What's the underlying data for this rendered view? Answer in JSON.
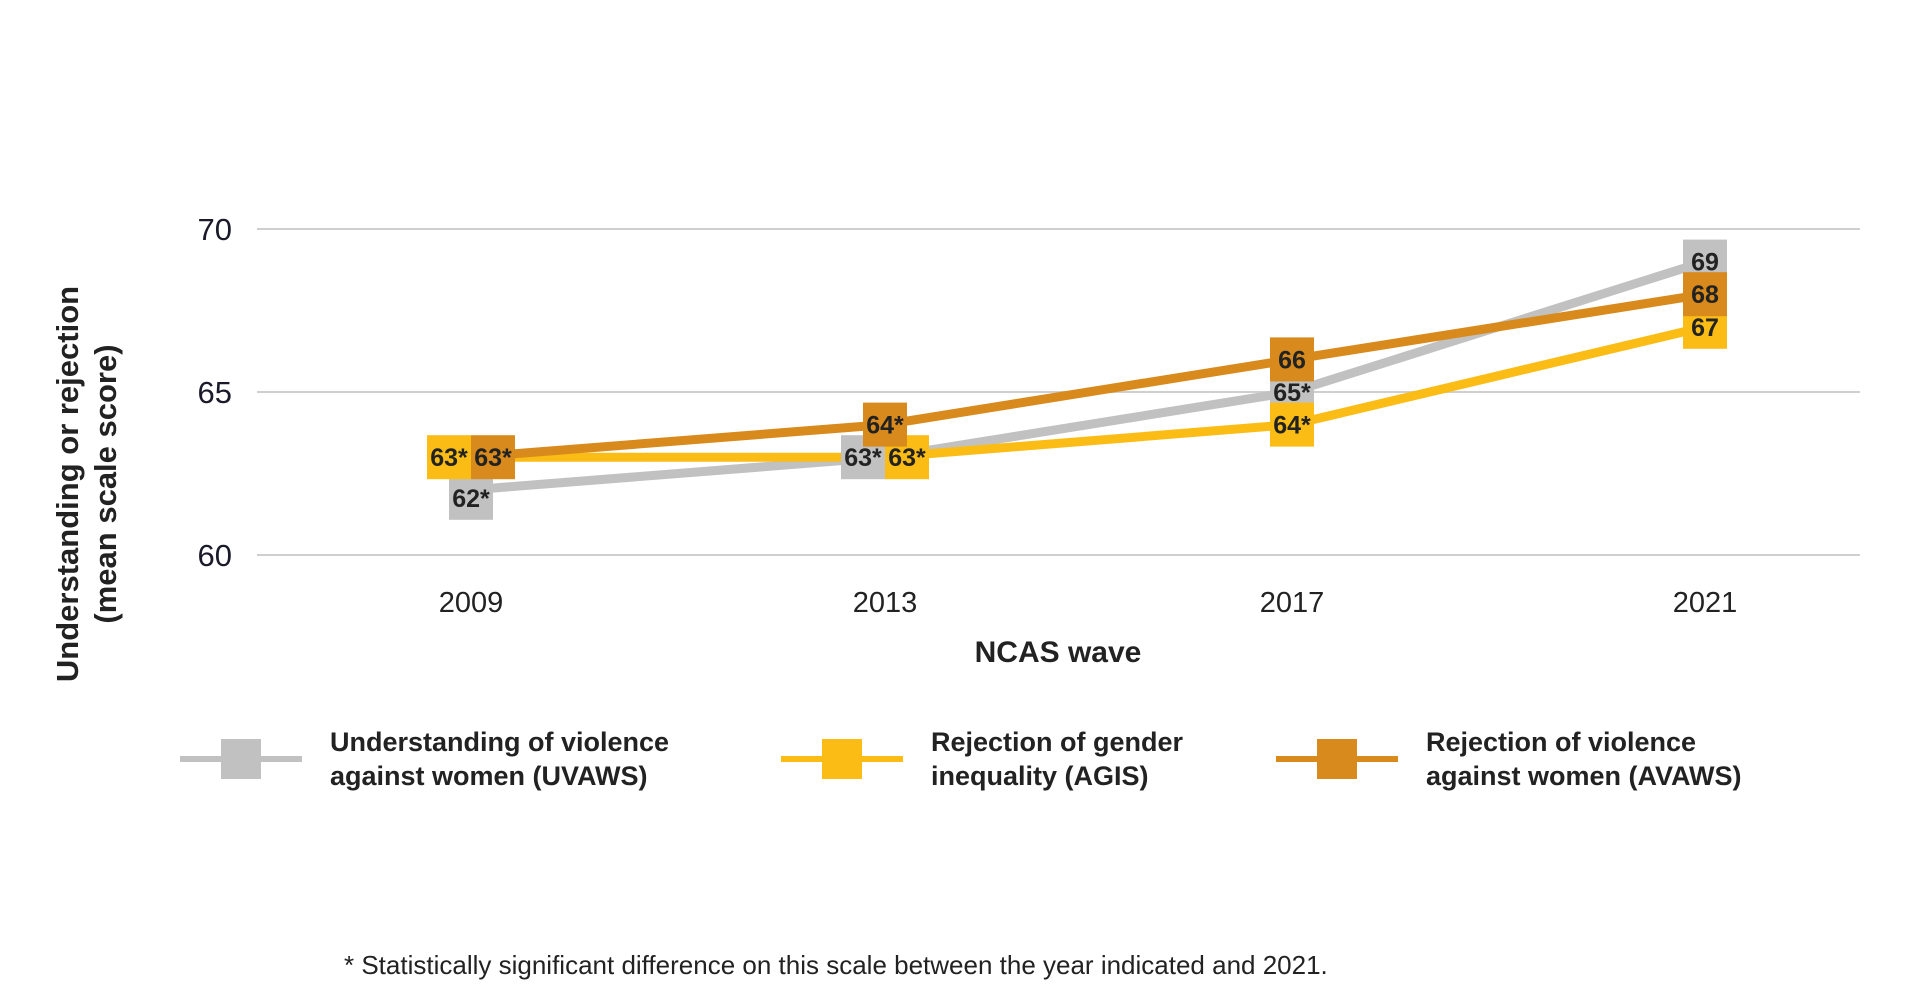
{
  "chart_data": {
    "type": "line",
    "xlabel": "NCAS wave",
    "ylabel_line1": "Understanding or rejection",
    "ylabel_line2": "(mean scale score)",
    "categories": [
      "2009",
      "2013",
      "2017",
      "2021"
    ],
    "ylim": [
      60,
      70
    ],
    "yticks": [
      60,
      65,
      70
    ],
    "grid": true,
    "legend_position": "bottom",
    "series": [
      {
        "key": "uvaws",
        "name": "Understanding of violence against women (UVAWS)",
        "color": "#c1c1c1",
        "values": [
          62,
          63,
          65,
          69
        ],
        "labels": [
          "62*",
          "63*",
          "65*",
          "69"
        ]
      },
      {
        "key": "agis",
        "name": "Rejection of gender inequality (AGIS)",
        "color": "#fbbd15",
        "values": [
          63,
          63,
          64,
          67
        ],
        "labels": [
          "63*",
          "63*",
          "64*",
          "67"
        ]
      },
      {
        "key": "avaws",
        "name": "Rejection of violence against women (AVAWS)",
        "color": "#d88a1c",
        "values": [
          63,
          64,
          66,
          68
        ],
        "labels": [
          "63*",
          "64*",
          "66",
          "68"
        ]
      }
    ]
  },
  "legend": [
    {
      "line1": "Understanding of violence",
      "line2": "against women (UVAWS)",
      "color": "#c1c1c1"
    },
    {
      "line1": "Rejection of gender",
      "line2": "inequality (AGIS)",
      "color": "#fbbd15"
    },
    {
      "line1": "Rejection of violence",
      "line2": "against women (AVAWS)",
      "color": "#d88a1c"
    }
  ],
  "footnote": "* Statistically significant difference on this scale between the year indicated and 2021."
}
